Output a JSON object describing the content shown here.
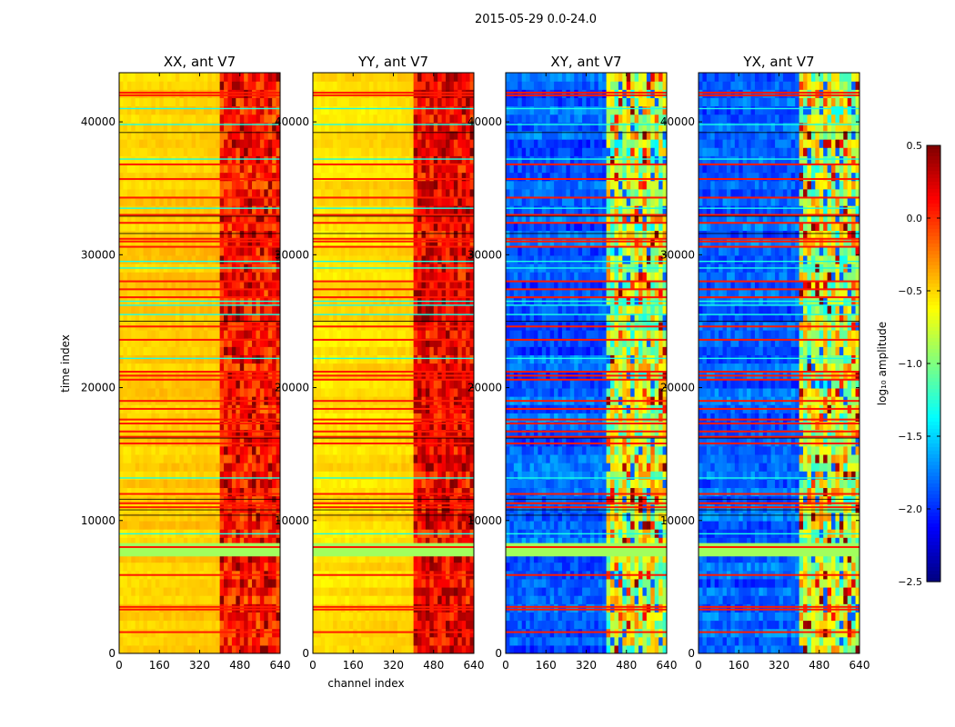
{
  "figure": {
    "suptitle": "2015-05-29 0.0-24.0"
  },
  "colors": {
    "jet": [
      "#00007f",
      "#0000ff",
      "#007fff",
      "#00ffff",
      "#7fff7f",
      "#ffff00",
      "#ff7f00",
      "#ff0000",
      "#7f0000"
    ]
  },
  "chart_data": [
    {
      "type": "heatmap",
      "title": "XX, ant V7",
      "xlabel": "",
      "ylabel": "time index",
      "xlim": [
        0,
        640
      ],
      "ylim": [
        0,
        43700
      ],
      "x_ticks": [
        0,
        160,
        320,
        480,
        640
      ],
      "y_ticks": [
        0,
        10000,
        20000,
        30000,
        40000
      ],
      "z_description": "log10 amplitude, mostly -0.6 to -0.3 for channels 0-400; -0.2 to 0.5 for channels 400-640",
      "background_level": -0.45,
      "bright_band_channels": [
        400,
        640
      ],
      "bright_band_level": 0.05
    },
    {
      "type": "heatmap",
      "title": "YY, ant V7",
      "xlabel": "channel index",
      "ylabel": "",
      "xlim": [
        0,
        640
      ],
      "ylim": [
        0,
        43700
      ],
      "x_ticks": [
        0,
        160,
        320,
        480,
        640
      ],
      "y_ticks": [
        0,
        10000,
        20000,
        30000,
        40000
      ],
      "z_description": "log10 amplitude, mostly -0.6 to -0.3 for channels 0-400; 0.0 to 0.5 for channels 400-640",
      "background_level": -0.5,
      "bright_band_channels": [
        400,
        640
      ],
      "bright_band_level": 0.15
    },
    {
      "type": "heatmap",
      "title": "XY, ant V7",
      "xlabel": "",
      "ylabel": "",
      "xlim": [
        0,
        640
      ],
      "ylim": [
        0,
        43700
      ],
      "x_ticks": [
        0,
        160,
        320,
        480,
        640
      ],
      "y_ticks": [
        0,
        10000,
        20000,
        30000,
        40000
      ],
      "z_description": "log10 amplitude, mostly -2.0 to -1.5 for channels 0-400; -1.0 to 0.3 for channels 400-640",
      "background_level": -1.85,
      "bright_band_channels": [
        400,
        640
      ],
      "bright_band_level": -0.8
    },
    {
      "type": "heatmap",
      "title": "YX, ant V7",
      "xlabel": "",
      "ylabel": "",
      "xlim": [
        0,
        640
      ],
      "ylim": [
        0,
        43700
      ],
      "x_ticks": [
        0,
        160,
        320,
        480,
        640
      ],
      "y_ticks": [
        0,
        10000,
        20000,
        30000,
        40000
      ],
      "z_description": "log10 amplitude, mostly -2.0 to -1.5 for channels 0-400; -1.0 to 0.3 for channels 400-640",
      "background_level": -1.85,
      "bright_band_channels": [
        400,
        640
      ],
      "bright_band_level": -0.8
    }
  ],
  "colorbar": {
    "label": "log₁₀ amplitude",
    "range": [
      -2.5,
      0.5
    ],
    "ticks": [
      0.5,
      0.0,
      -0.5,
      -1.0,
      -1.5,
      -2.0,
      -2.5
    ],
    "tick_labels": [
      "0.5",
      "0.0",
      "−0.5",
      "−1.0",
      "−1.5",
      "−2.0",
      "−2.5"
    ],
    "colormap": "jet"
  }
}
